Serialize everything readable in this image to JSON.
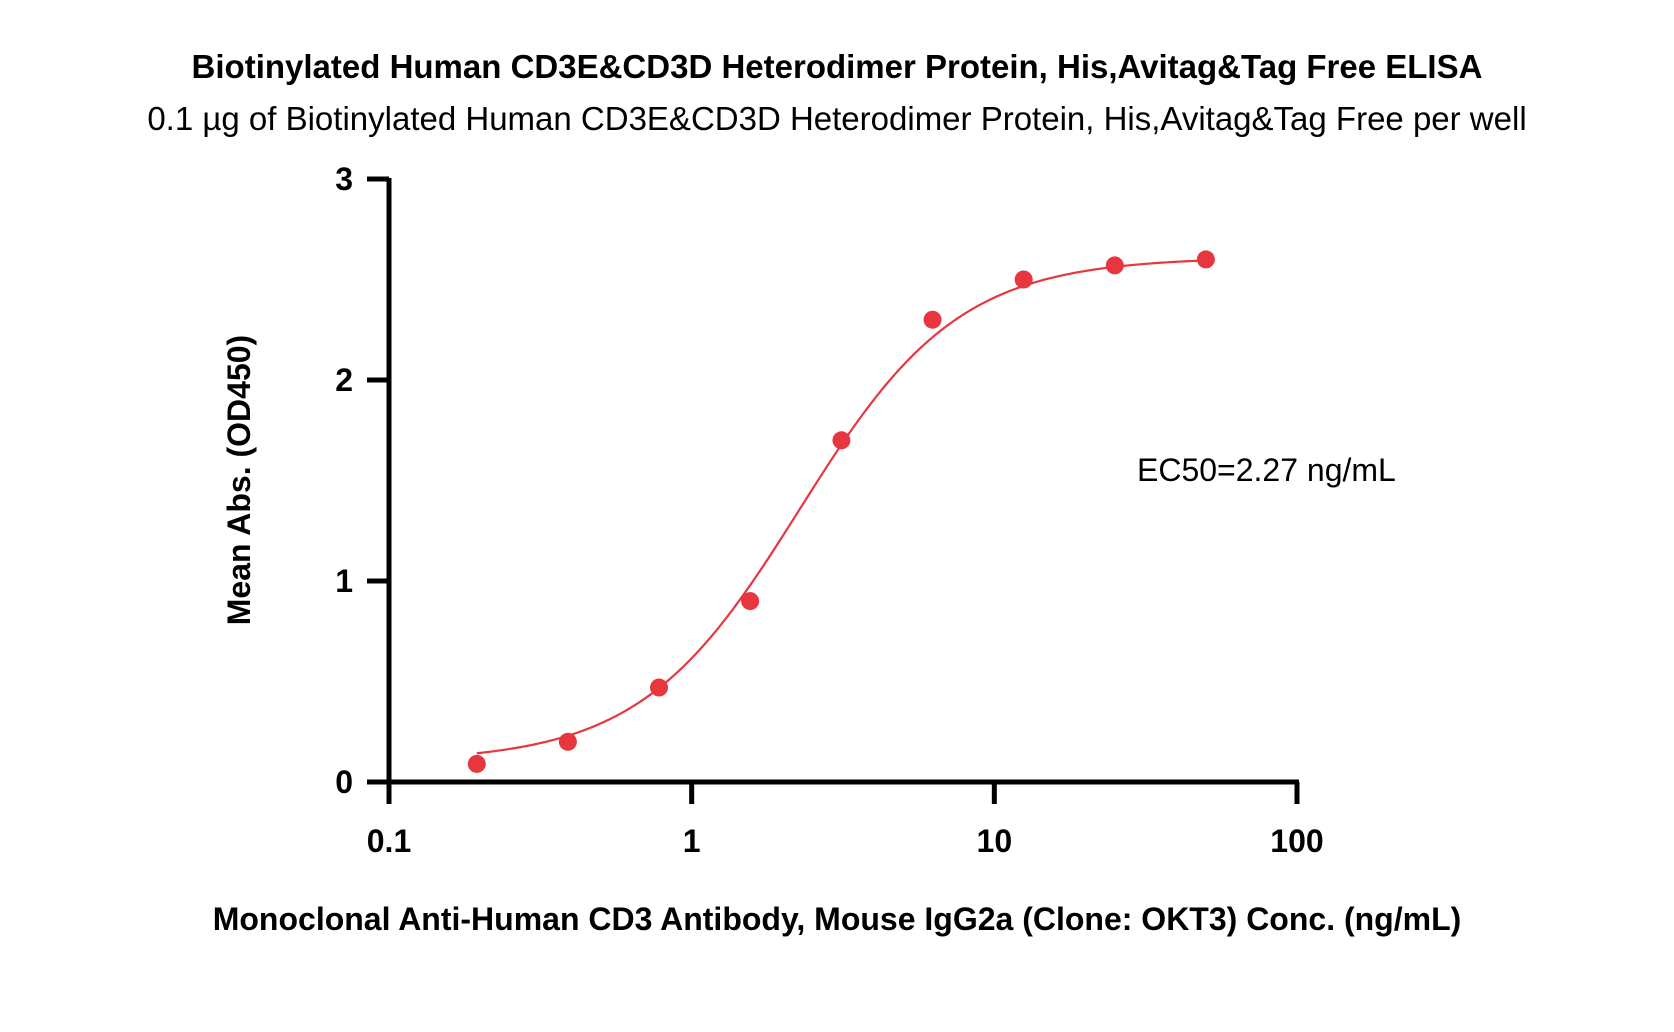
{
  "chart_data": {
    "type": "scatter",
    "title": "Biotinylated Human CD3E&CD3D Heterodimer Protein, His,Avitag&Tag Free ELISA",
    "subtitle": "0.1 µg of Biotinylated Human CD3E&CD3D Heterodimer Protein, His,Avitag&Tag Free per well",
    "xlabel": "Monoclonal Anti-Human CD3 Antibody, Mouse IgG2a (Clone: OKT3) Conc. (ng/mL)",
    "ylabel": "Mean Abs. (OD450)",
    "x_scale": "log",
    "xlim": [
      0.1,
      100
    ],
    "ylim": [
      0,
      3
    ],
    "x_ticks": [
      0.1,
      1,
      10,
      100
    ],
    "x_tick_labels": [
      "0.1",
      "1",
      "10",
      "100"
    ],
    "y_ticks": [
      0,
      1,
      2,
      3
    ],
    "y_tick_labels": [
      "0",
      "1",
      "2",
      "3"
    ],
    "grid": false,
    "color": "#e8363e",
    "series": [
      {
        "x": [
          0.195,
          0.39,
          0.78,
          1.56,
          3.125,
          6.25,
          12.5,
          25,
          50
        ],
        "y": [
          0.09,
          0.2,
          0.47,
          0.9,
          1.7,
          2.3,
          2.5,
          2.57,
          2.6
        ]
      }
    ],
    "fit": {
      "type": "4PL",
      "ec50": 2.27,
      "bottom": 0.1,
      "top": 2.61,
      "hill": 1.65
    },
    "annotations": [
      {
        "text": "EC50=2.27 ng/mL"
      }
    ]
  }
}
